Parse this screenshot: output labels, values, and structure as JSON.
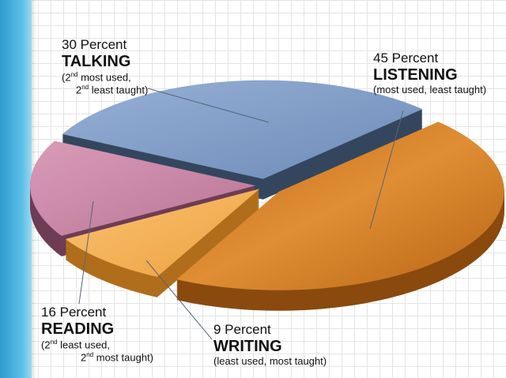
{
  "chart_data": {
    "type": "pie",
    "style": "3d-exploded",
    "categories": [
      "LISTENING",
      "WRITING",
      "READING",
      "TALKING"
    ],
    "values": [
      45,
      9,
      16,
      30
    ],
    "colors": {
      "LISTENING": "#d9822b",
      "WRITING": "#f5b35a",
      "READING": "#c98aa8",
      "TALKING": "#7f9cc8"
    },
    "side_colors": {
      "LISTENING": "#8a4a0e",
      "WRITING": "#b06e1c",
      "READING": "#6e3d55",
      "TALKING": "#34465e"
    },
    "legend": "none"
  },
  "labels": {
    "talking": {
      "pct": "30 Percent",
      "name": "TALKING",
      "line1a": "(2",
      "line1sup": "nd",
      "line1b": " most used,",
      "line2a": "2",
      "line2sup": "nd",
      "line2b": " least taught)"
    },
    "listening": {
      "pct": "45 Percent",
      "name": "LISTENING",
      "note": "(most used, least taught)"
    },
    "reading": {
      "pct": "16 Percent",
      "name": "READING",
      "line1a": "(2",
      "line1sup": "nd",
      "line1b": " least used,",
      "line2a": "2",
      "line2sup": "nd",
      "line2b": " most taught)"
    },
    "writing": {
      "pct": "9 Percent",
      "name": "WRITING",
      "note": "(least used, most taught)"
    }
  }
}
